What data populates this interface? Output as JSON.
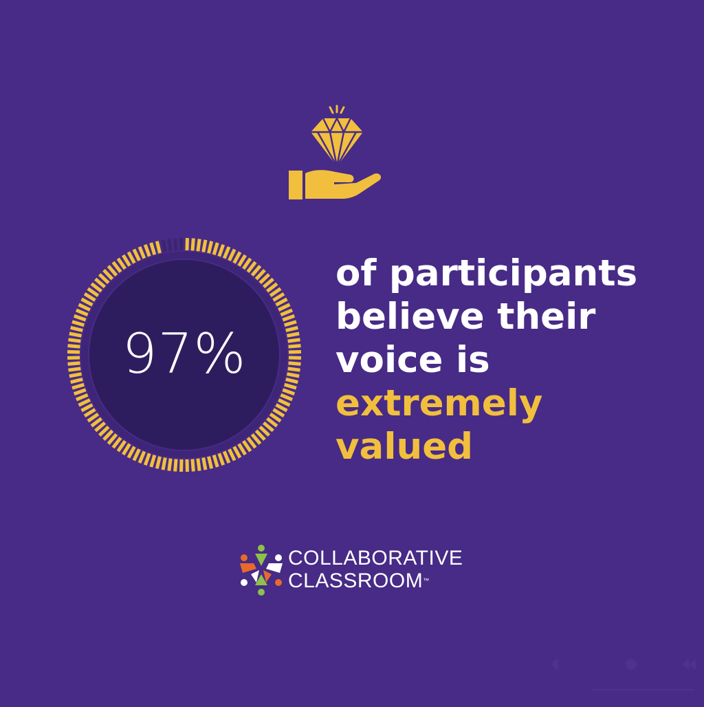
{
  "stat": {
    "value_label": "97%",
    "percent": 97,
    "ring_color": "#f1bf3d",
    "ring_track_color": "#3c2570",
    "inner_color": "#2e1d5e"
  },
  "caption": {
    "line1": "of participants",
    "line2": "believe their",
    "line3": "voice is",
    "line4": "extremely",
    "line5": "valued"
  },
  "icon": {
    "name": "diamond-in-hand-icon",
    "color": "#f1bf3d"
  },
  "logo": {
    "line1": "COLLABORATIVE",
    "line2": "CLASSROOM",
    "trademark": "™"
  },
  "colors": {
    "background": "#472b86",
    "accent": "#f1bf3d",
    "text": "#ffffff"
  }
}
